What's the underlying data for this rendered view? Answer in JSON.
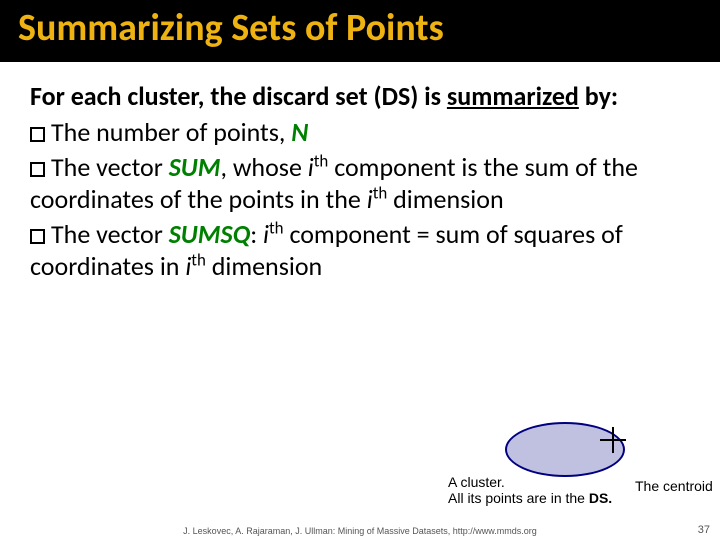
{
  "title": "Summarizing Sets of Points",
  "intro": {
    "line1_prefix": "For each cluster, the discard set (DS) is ",
    "line1_underlined": "summarized",
    "line1_suffix": " by:"
  },
  "bullets": {
    "b1_pre": "The number of points, ",
    "b1_N": "N",
    "b2_a": "The vector ",
    "b2_SUM": "SUM",
    "b2_b": ", whose ",
    "b2_i": "i",
    "b2_th": "th",
    "b2_c": " component is the sum of the coordinates of the points in the ",
    "b2_i2": "i",
    "b2_th2": "th",
    "b2_d": " dimension",
    "b3_a": "The vector ",
    "b3_SUMSQ": "SUMSQ",
    "b3_b": ": ",
    "b3_i": "i",
    "b3_th": "th",
    "b3_c": " component = sum of squares of coordinates in ",
    "b3_i2": "i",
    "b3_th2": "th",
    "b3_d": " dimension"
  },
  "diagram": {
    "caption_left_l1": "A cluster.",
    "caption_left_l2": "All its points are in the ",
    "caption_left_ds": "DS.",
    "caption_right": "The centroid",
    "ellipse_fill": "#c0c0e0",
    "ellipse_stroke": "#000080"
  },
  "footer": "J. Leskovec, A. Rajaraman, J. Ullman: Mining of Massive Datasets, http://www.mmds.org",
  "page_number": "37",
  "colors": {
    "title_bg": "#000000",
    "title_fg": "#eeb211",
    "accent_green": "#008000"
  }
}
